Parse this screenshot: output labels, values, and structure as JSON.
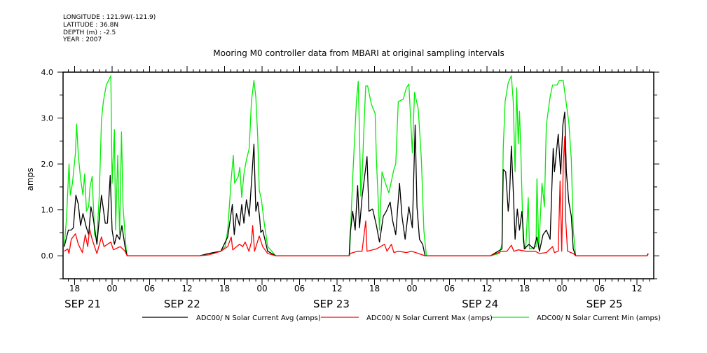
{
  "header": {
    "longitude": "LONGITUDE : 121.9W(-121.9)",
    "latitude": "LATITUDE : 36.8N",
    "depth": "DEPTH (m) : -2.5",
    "year": "YEAR : 2007"
  },
  "chart_data": {
    "type": "line",
    "title": "Mooring M0 controller data from MBARI at original sampling intervals",
    "xlabel": "",
    "ylabel": "amps",
    "x_units": "hours since SEP 21 00:00",
    "xlim": [
      16.15,
      110.69
    ],
    "ylim": [
      -0.5,
      4.0
    ],
    "yticks": [
      0.0,
      1.0,
      2.0,
      3.0,
      4.0
    ],
    "ytick_labels": [
      "0.0",
      "1.0",
      "2.0",
      "3.0",
      "4.0"
    ],
    "xticks": [
      18,
      24,
      30,
      36,
      42,
      48,
      54,
      60,
      66,
      72,
      78,
      84,
      90,
      96,
      102,
      108
    ],
    "xtick_labels": [
      "18",
      "00",
      "06",
      "12",
      "18",
      "00",
      "06",
      "12",
      "18",
      "00",
      "06",
      "12",
      "18",
      "00",
      "06",
      "12"
    ],
    "date_labels": [
      {
        "text": "SEP 21",
        "at": 19.3
      },
      {
        "text": "SEP 22",
        "at": 35.2
      },
      {
        "text": "SEP 23",
        "at": 59.1
      },
      {
        "text": "SEP 24",
        "at": 82.9
      },
      {
        "text": "SEP 25",
        "at": 102.8
      }
    ],
    "grid": false,
    "legend_position": "bottom",
    "series": [
      {
        "name": "ADC00/ N Solar Current Avg (amps)",
        "color": "#000000",
        "points": [
          [
            16.34,
            0.2
          ],
          [
            17.0,
            0.56
          ],
          [
            17.46,
            0.56
          ],
          [
            17.8,
            0.61
          ],
          [
            18.2,
            1.32
          ],
          [
            18.6,
            1.12
          ],
          [
            18.95,
            0.66
          ],
          [
            19.33,
            0.92
          ],
          [
            19.9,
            0.61
          ],
          [
            20.26,
            0.46
          ],
          [
            20.6,
            1.07
          ],
          [
            21.0,
            0.81
          ],
          [
            21.57,
            0.25
          ],
          [
            22.3,
            1.32
          ],
          [
            22.9,
            0.71
          ],
          [
            23.25,
            0.71
          ],
          [
            23.7,
            1.75
          ],
          [
            24.0,
            0.56
          ],
          [
            24.37,
            0.25
          ],
          [
            24.75,
            0.46
          ],
          [
            25.2,
            0.36
          ],
          [
            25.57,
            0.66
          ],
          [
            26.06,
            0.2
          ],
          [
            26.4,
            0
          ],
          [
            38.0,
            0
          ],
          [
            39.5,
            0.05
          ],
          [
            41.4,
            0.1
          ],
          [
            42.5,
            0.41
          ],
          [
            43.25,
            1.12
          ],
          [
            43.55,
            0.46
          ],
          [
            43.9,
            0.92
          ],
          [
            44.4,
            0.66
          ],
          [
            44.75,
            1.12
          ],
          [
            45.1,
            0.71
          ],
          [
            45.5,
            1.22
          ],
          [
            45.95,
            0.86
          ],
          [
            46.3,
            1.58
          ],
          [
            46.7,
            2.43
          ],
          [
            47.0,
            0.97
          ],
          [
            47.3,
            1.17
          ],
          [
            47.6,
            0.86
          ],
          [
            47.8,
            0.51
          ],
          [
            48.1,
            0.56
          ],
          [
            48.9,
            0.1
          ],
          [
            50.2,
            0
          ],
          [
            61.95,
            0
          ],
          [
            62.1,
            0.46
          ],
          [
            62.5,
            0.97
          ],
          [
            62.9,
            0.56
          ],
          [
            63.3,
            1.53
          ],
          [
            63.6,
            0.61
          ],
          [
            64.0,
            1.27
          ],
          [
            64.6,
            1.93
          ],
          [
            64.8,
            2.16
          ],
          [
            65.1,
            0.97
          ],
          [
            65.7,
            1.02
          ],
          [
            66.3,
            0.66
          ],
          [
            66.8,
            0.3
          ],
          [
            67.4,
            0.86
          ],
          [
            67.9,
            0.97
          ],
          [
            68.5,
            1.17
          ],
          [
            68.9,
            0.76
          ],
          [
            69.4,
            0.46
          ],
          [
            70.0,
            1.58
          ],
          [
            70.4,
            0.86
          ],
          [
            70.9,
            0.36
          ],
          [
            71.5,
            1.07
          ],
          [
            72.05,
            0.61
          ],
          [
            72.5,
            2.85
          ],
          [
            72.8,
            1.07
          ],
          [
            73.2,
            0.36
          ],
          [
            73.7,
            0.25
          ],
          [
            74.1,
            0
          ],
          [
            84.56,
            0
          ],
          [
            86.4,
            0.15
          ],
          [
            86.6,
            1.88
          ],
          [
            86.99,
            1.83
          ],
          [
            87.4,
            0.97
          ],
          [
            87.6,
            1.27
          ],
          [
            87.9,
            2.39
          ],
          [
            88.2,
            1.43
          ],
          [
            88.5,
            0.36
          ],
          [
            88.86,
            1.02
          ],
          [
            89.2,
            0.56
          ],
          [
            89.6,
            0.97
          ],
          [
            89.98,
            0.15
          ],
          [
            90.7,
            0.25
          ],
          [
            91.5,
            0.15
          ],
          [
            92.0,
            0.41
          ],
          [
            92.4,
            0.1
          ],
          [
            92.97,
            0.46
          ],
          [
            93.5,
            0.56
          ],
          [
            94.1,
            0.36
          ],
          [
            94.6,
            2.34
          ],
          [
            94.8,
            1.83
          ],
          [
            95.4,
            2.65
          ],
          [
            95.8,
            1.78
          ],
          [
            96.15,
            2.85
          ],
          [
            96.45,
            3.13
          ],
          [
            96.7,
            1.83
          ],
          [
            97.1,
            1.17
          ],
          [
            97.5,
            0.86
          ],
          [
            97.8,
            0.15
          ],
          [
            98.2,
            0
          ],
          [
            109.6,
            0
          ],
          [
            109.8,
            0.05
          ]
        ]
      },
      {
        "name": "ADC00/ N Solar Current Max (amps)",
        "color": "#ff0000",
        "points": [
          [
            16.34,
            0.1
          ],
          [
            16.9,
            0.15
          ],
          [
            17.1,
            0.05
          ],
          [
            17.46,
            0.36
          ],
          [
            18.13,
            0.48
          ],
          [
            18.6,
            0.25
          ],
          [
            19.25,
            0.07
          ],
          [
            19.7,
            0.46
          ],
          [
            20.1,
            0.2
          ],
          [
            20.4,
            0.58
          ],
          [
            20.8,
            0.36
          ],
          [
            21.57,
            0.05
          ],
          [
            22.3,
            0.41
          ],
          [
            22.7,
            0.2
          ],
          [
            23.8,
            0.3
          ],
          [
            24.2,
            0.13
          ],
          [
            25.3,
            0.2
          ],
          [
            26.06,
            0.1
          ],
          [
            26.4,
            0
          ],
          [
            38.0,
            0
          ],
          [
            39.5,
            0.02
          ],
          [
            41.4,
            0.1
          ],
          [
            42.5,
            0.2
          ],
          [
            43.06,
            0.41
          ],
          [
            43.3,
            0.13
          ],
          [
            44.4,
            0.25
          ],
          [
            44.9,
            0.2
          ],
          [
            45.3,
            0.3
          ],
          [
            45.9,
            0.1
          ],
          [
            46.3,
            0.3
          ],
          [
            46.5,
            0.66
          ],
          [
            46.8,
            0.1
          ],
          [
            47.55,
            0.43
          ],
          [
            48.1,
            0.2
          ],
          [
            48.9,
            0.05
          ],
          [
            50.2,
            0
          ],
          [
            61.95,
            0
          ],
          [
            62.1,
            0.05
          ],
          [
            63.3,
            0.1
          ],
          [
            64.0,
            0.1
          ],
          [
            64.6,
            0.76
          ],
          [
            64.8,
            0.1
          ],
          [
            66.3,
            0.15
          ],
          [
            67.6,
            0.25
          ],
          [
            68.0,
            0.1
          ],
          [
            68.7,
            0.25
          ],
          [
            69.1,
            0.07
          ],
          [
            69.8,
            0.1
          ],
          [
            71.1,
            0.07
          ],
          [
            71.9,
            0.1
          ],
          [
            72.6,
            0.07
          ],
          [
            74.1,
            0
          ],
          [
            84.56,
            0
          ],
          [
            86.4,
            0.1
          ],
          [
            87.2,
            0.1
          ],
          [
            87.9,
            0.23
          ],
          [
            88.3,
            0.1
          ],
          [
            89.0,
            0.13
          ],
          [
            90.2,
            0.1
          ],
          [
            91.7,
            0.1
          ],
          [
            92.4,
            0.05
          ],
          [
            93.5,
            0.07
          ],
          [
            94.5,
            0.2
          ],
          [
            94.8,
            0.07
          ],
          [
            95.4,
            0.1
          ],
          [
            95.7,
            1.63
          ],
          [
            95.96,
            0.1
          ],
          [
            96.2,
            1.98
          ],
          [
            96.45,
            2.6
          ],
          [
            96.6,
            0.76
          ],
          [
            96.9,
            0.1
          ],
          [
            97.8,
            0.05
          ],
          [
            98.2,
            0
          ],
          [
            109.6,
            0
          ],
          [
            109.8,
            0.03
          ]
        ]
      },
      {
        "name": "ADC00/ N Solar Current Min (amps)",
        "color": "#00ee00",
        "points": [
          [
            16.34,
            0.2
          ],
          [
            16.7,
            0.81
          ],
          [
            17.1,
            2.0
          ],
          [
            17.3,
            1.32
          ],
          [
            17.65,
            1.58
          ],
          [
            18.13,
            2.24
          ],
          [
            18.32,
            2.87
          ],
          [
            18.6,
            2.19
          ],
          [
            18.95,
            1.68
          ],
          [
            19.33,
            1.32
          ],
          [
            19.6,
            1.78
          ],
          [
            19.9,
            0.97
          ],
          [
            20.26,
            1.07
          ],
          [
            20.45,
            1.48
          ],
          [
            20.8,
            1.73
          ],
          [
            21.2,
            0.46
          ],
          [
            21.57,
            0.36
          ],
          [
            21.95,
            1.32
          ],
          [
            22.3,
            2.95
          ],
          [
            22.6,
            3.36
          ],
          [
            23.07,
            3.72
          ],
          [
            23.8,
            3.92
          ],
          [
            24.0,
            1.58
          ],
          [
            24.37,
            2.75
          ],
          [
            24.56,
            0.56
          ],
          [
            24.9,
            2.19
          ],
          [
            25.2,
            0.46
          ],
          [
            25.5,
            2.7
          ],
          [
            25.75,
            1.07
          ],
          [
            26.24,
            0.15
          ],
          [
            26.4,
            0
          ],
          [
            38.0,
            0
          ],
          [
            39.5,
            0.05
          ],
          [
            41.4,
            0.1
          ],
          [
            42.1,
            0.2
          ],
          [
            42.5,
            0.56
          ],
          [
            43.06,
            1.68
          ],
          [
            43.4,
            2.19
          ],
          [
            43.6,
            1.58
          ],
          [
            44.2,
            1.73
          ],
          [
            44.45,
            1.93
          ],
          [
            44.75,
            1.27
          ],
          [
            45.1,
            1.78
          ],
          [
            45.5,
            2.09
          ],
          [
            45.95,
            2.34
          ],
          [
            46.3,
            3.36
          ],
          [
            46.7,
            3.82
          ],
          [
            47.0,
            3.46
          ],
          [
            47.3,
            2.6
          ],
          [
            47.55,
            1.43
          ],
          [
            47.9,
            1.22
          ],
          [
            48.3,
            0.76
          ],
          [
            48.9,
            0.2
          ],
          [
            50.2,
            0
          ],
          [
            61.95,
            0
          ],
          [
            62.1,
            0.3
          ],
          [
            62.5,
            1.68
          ],
          [
            62.9,
            2.8
          ],
          [
            63.1,
            3.36
          ],
          [
            63.4,
            3.8
          ],
          [
            63.6,
            2.6
          ],
          [
            63.8,
            1.3
          ],
          [
            64.0,
            1.7
          ],
          [
            64.4,
            3.1
          ],
          [
            64.6,
            3.7
          ],
          [
            64.9,
            3.7
          ],
          [
            65.5,
            3.3
          ],
          [
            66.1,
            3.1
          ],
          [
            66.3,
            2.1
          ],
          [
            66.8,
            0.56
          ],
          [
            67.2,
            1.83
          ],
          [
            67.75,
            1.58
          ],
          [
            68.3,
            1.37
          ],
          [
            69.1,
            1.88
          ],
          [
            69.4,
            2.0
          ],
          [
            69.8,
            3.36
          ],
          [
            70.6,
            3.41
          ],
          [
            71.1,
            3.66
          ],
          [
            71.5,
            3.74
          ],
          [
            72.05,
            2.24
          ],
          [
            72.4,
            3.56
          ],
          [
            73.0,
            3.2
          ],
          [
            73.5,
            2.09
          ],
          [
            73.9,
            0.56
          ],
          [
            74.3,
            0
          ],
          [
            84.56,
            0
          ],
          [
            86.0,
            0.05
          ],
          [
            86.4,
            0.25
          ],
          [
            86.6,
            2.34
          ],
          [
            86.9,
            3.36
          ],
          [
            87.4,
            3.77
          ],
          [
            87.9,
            3.92
          ],
          [
            88.2,
            3.36
          ],
          [
            88.5,
            1.83
          ],
          [
            88.75,
            3.66
          ],
          [
            89.0,
            2.44
          ],
          [
            89.2,
            3.15
          ],
          [
            89.4,
            2.34
          ],
          [
            89.8,
            0.3
          ],
          [
            90.2,
            0.15
          ],
          [
            90.6,
            1.27
          ],
          [
            90.8,
            0.15
          ],
          [
            91.85,
            0.2
          ],
          [
            92.0,
            1.68
          ],
          [
            92.3,
            0.15
          ],
          [
            92.8,
            1.58
          ],
          [
            93.2,
            1.07
          ],
          [
            93.5,
            2.85
          ],
          [
            94.1,
            3.46
          ],
          [
            94.5,
            3.72
          ],
          [
            95.2,
            3.72
          ],
          [
            95.6,
            3.82
          ],
          [
            96.2,
            3.82
          ],
          [
            96.5,
            3.51
          ],
          [
            97.1,
            2.9
          ],
          [
            97.5,
            2.09
          ],
          [
            97.8,
            0.56
          ],
          [
            98.2,
            0
          ],
          [
            109.6,
            0
          ],
          [
            109.8,
            0.05
          ]
        ]
      }
    ]
  }
}
